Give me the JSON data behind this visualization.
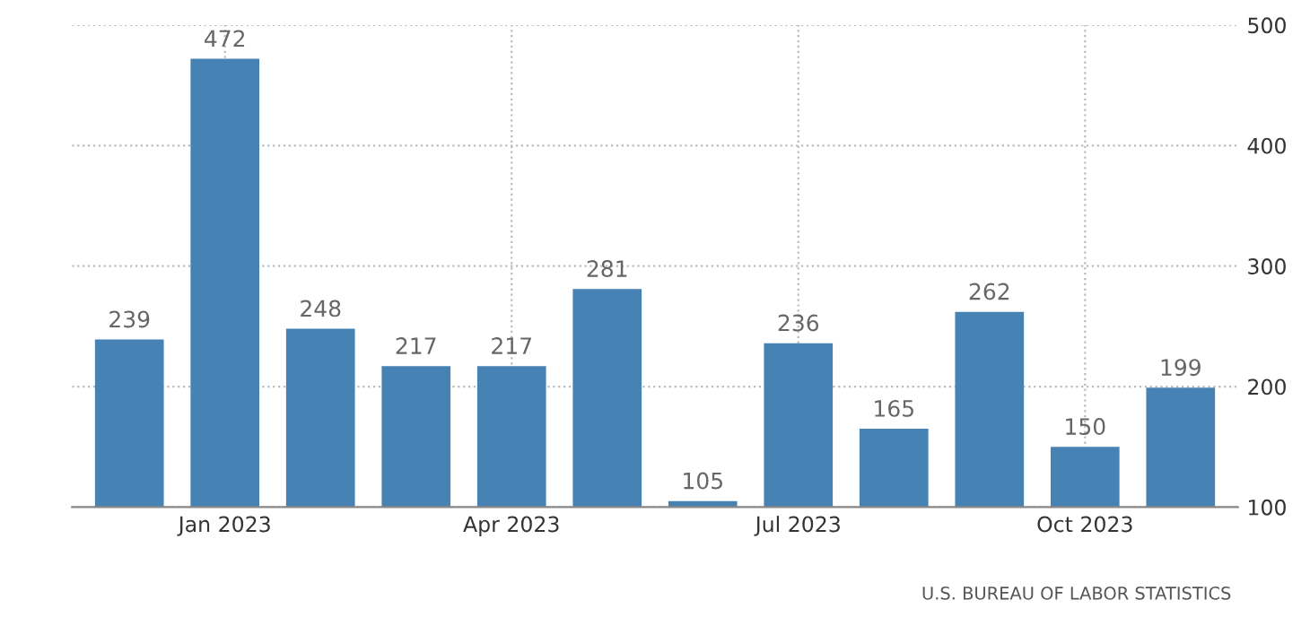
{
  "chart_data": {
    "type": "bar",
    "categories": [
      null,
      "Jan 2023",
      null,
      null,
      "Apr 2023",
      null,
      null,
      "Jul 2023",
      null,
      null,
      "Oct 2023",
      null
    ],
    "values": [
      239,
      472,
      248,
      217,
      217,
      281,
      105,
      236,
      165,
      262,
      150,
      199
    ],
    "color": "#4682b4",
    "ylim": [
      100,
      500
    ],
    "yticks": [
      100,
      200,
      300,
      400,
      500
    ],
    "grid": true,
    "data_labels": true,
    "annotations": [
      "U.S. BUREAU OF LABOR STATISTICS"
    ]
  }
}
